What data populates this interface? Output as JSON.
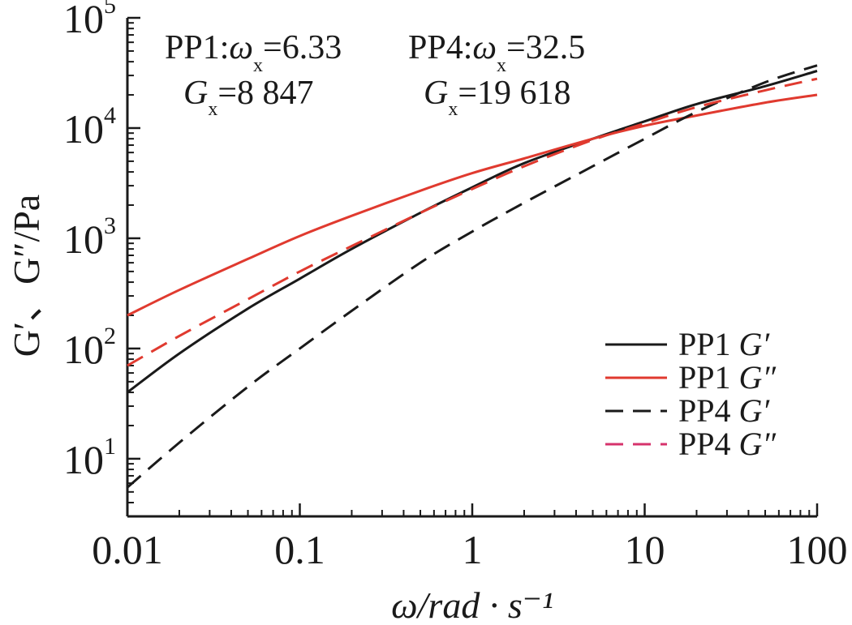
{
  "chart_data": {
    "type": "line",
    "title": "",
    "xlabel": "ω/rad · s⁻¹",
    "ylabel": "G′、G″/Pa",
    "x_scale": "log",
    "y_scale": "log",
    "xlim": [
      0.01,
      100
    ],
    "ylim": [
      3,
      100000
    ],
    "x_ticks": [
      {
        "value": 0.01,
        "label": "0.01"
      },
      {
        "value": 0.1,
        "label": "0.1"
      },
      {
        "value": 1,
        "label": "1"
      },
      {
        "value": 10,
        "label": "10"
      },
      {
        "value": 100,
        "label": "100"
      }
    ],
    "y_ticks": [
      {
        "value": 10,
        "base": "10",
        "exp": "1"
      },
      {
        "value": 100,
        "base": "10",
        "exp": "2"
      },
      {
        "value": 1000,
        "base": "10",
        "exp": "3"
      },
      {
        "value": 10000,
        "base": "10",
        "exp": "4"
      },
      {
        "value": 100000,
        "base": "10",
        "exp": "5"
      }
    ],
    "grid": false,
    "legend_position": "bottom-right",
    "annotations": [
      {
        "series": "PP1",
        "omega_label": "ω",
        "omega_sub": "x",
        "omega_value": "=6.33",
        "g_label": "G",
        "g_sub": "x",
        "g_value": "=8 847"
      },
      {
        "series": "PP4",
        "omega_label": "ω",
        "omega_sub": "x",
        "omega_value": "=32.5",
        "g_label": "G",
        "g_sub": "x",
        "g_value": "=19 618"
      }
    ],
    "series": [
      {
        "name": "PP1 G′",
        "legend_prefix": "PP1 ",
        "legend_symbol": "G′",
        "color": "#1a1a1a",
        "dash": false,
        "x": [
          0.01,
          0.02,
          0.05,
          0.1,
          0.2,
          0.5,
          1,
          2,
          5,
          10,
          20,
          50,
          100
        ],
        "y": [
          40,
          90,
          230,
          430,
          800,
          1700,
          2900,
          4800,
          8000,
          11500,
          16500,
          24000,
          33000
        ]
      },
      {
        "name": "PP1 G″",
        "legend_prefix": "PP1 ",
        "legend_symbol": "G″",
        "color": "#e03a2f",
        "dash": false,
        "x": [
          0.01,
          0.02,
          0.05,
          0.1,
          0.2,
          0.5,
          1,
          2,
          5,
          10,
          20,
          50,
          100
        ],
        "y": [
          200,
          340,
          650,
          1050,
          1600,
          2700,
          3900,
          5300,
          8000,
          10500,
          13000,
          17000,
          20000
        ]
      },
      {
        "name": "PP4 G′",
        "legend_prefix": "PP4 ",
        "legend_symbol": "G′",
        "color": "#1a1a1a",
        "dash": true,
        "x": [
          0.01,
          0.02,
          0.05,
          0.1,
          0.2,
          0.5,
          1,
          2,
          5,
          10,
          20,
          50,
          100
        ],
        "y": [
          5.5,
          14,
          45,
          100,
          220,
          600,
          1150,
          2100,
          4500,
          8000,
          14000,
          26000,
          37000
        ]
      },
      {
        "name": "PP4 G″",
        "legend_prefix": "PP4 ",
        "legend_symbol": "G″",
        "color": "#e03a2f",
        "legend_color": "#d6336c",
        "dash": true,
        "x": [
          0.01,
          0.02,
          0.05,
          0.1,
          0.2,
          0.5,
          1,
          2,
          5,
          10,
          20,
          50,
          100
        ],
        "y": [
          70,
          130,
          280,
          500,
          850,
          1700,
          2800,
          4500,
          7800,
          11000,
          15500,
          22000,
          28000
        ]
      }
    ]
  }
}
